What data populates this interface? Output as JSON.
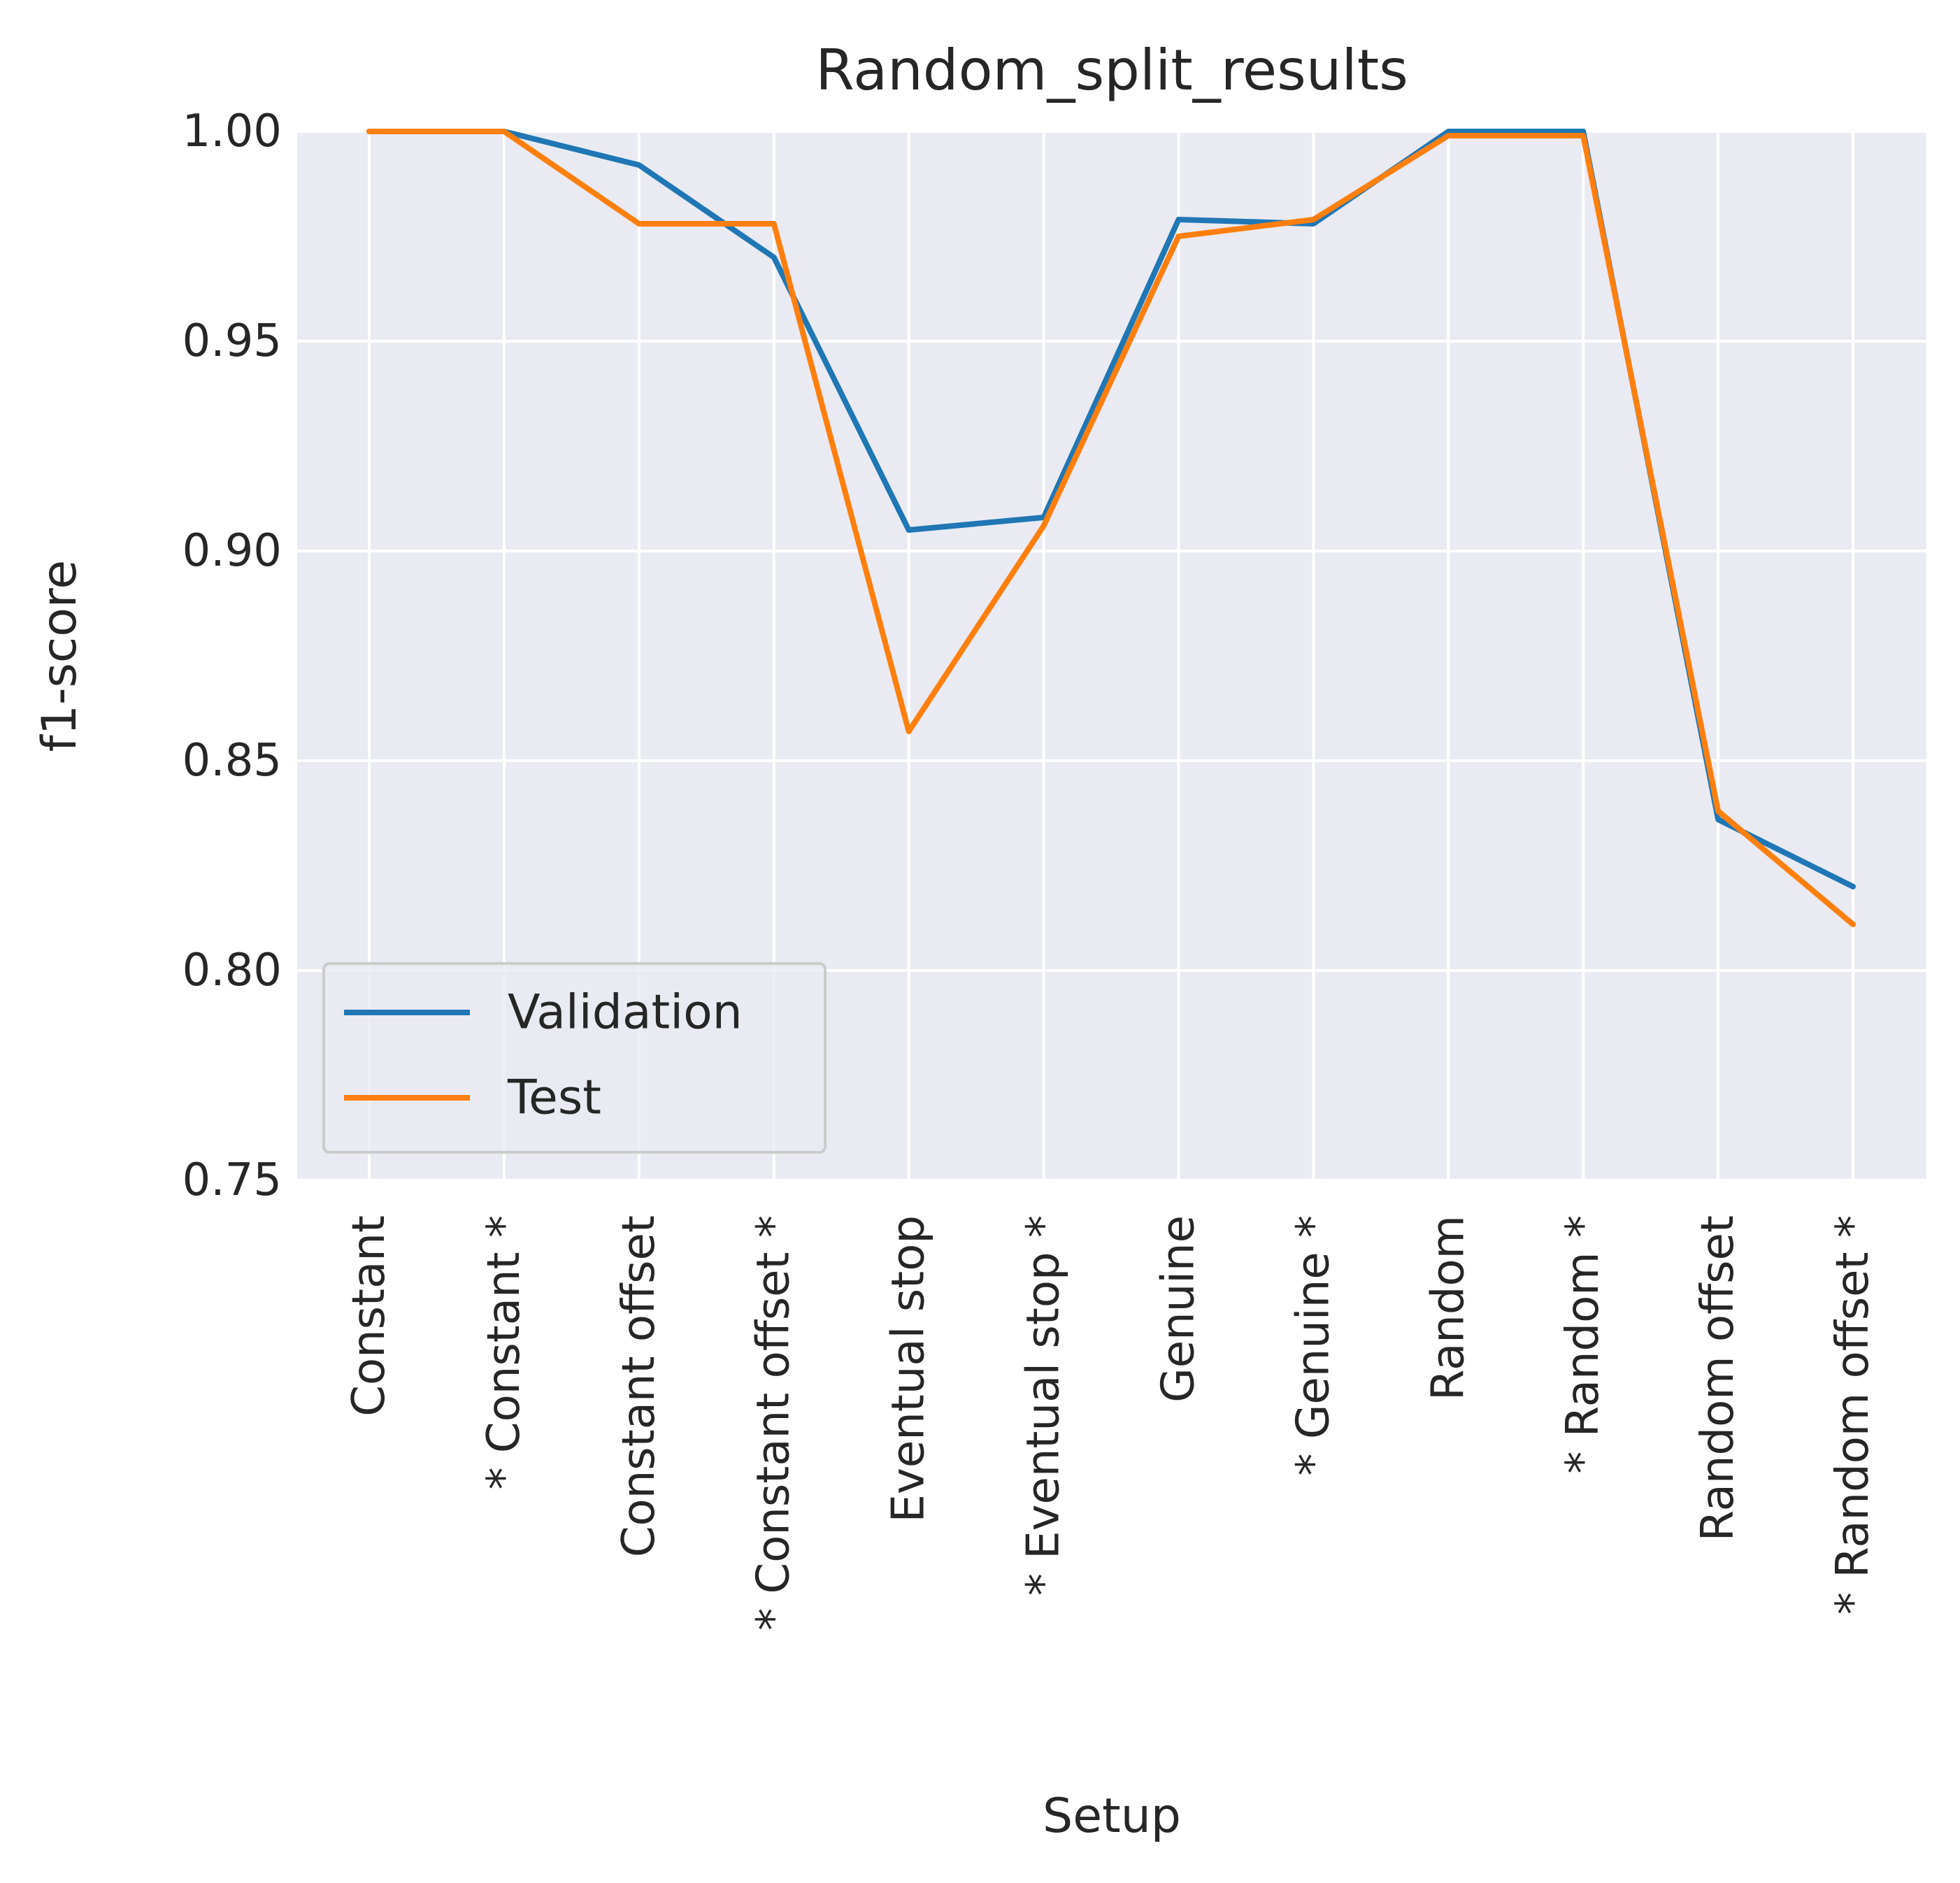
{
  "chart_data": {
    "type": "line",
    "title": "Random_split_results",
    "xlabel": "Setup",
    "ylabel": "f1-score",
    "ylim": [
      0.75,
      1.0
    ],
    "yticks": [
      "0.75",
      "0.80",
      "0.85",
      "0.90",
      "0.95",
      "1.00"
    ],
    "grid": true,
    "legend_position": "lower-left",
    "categories": [
      "Constant",
      "* Constant *",
      "Constant offset",
      "* Constant offset *",
      "Eventual stop",
      "* Eventual stop *",
      "Genuine",
      "* Genuine *",
      "Random",
      "* Random *",
      "Random offset",
      "* Random offset *"
    ],
    "series": [
      {
        "name": "Validation",
        "color": "#1f77b4",
        "values": [
          1.0,
          1.0,
          0.992,
          0.97,
          0.905,
          0.908,
          0.979,
          0.978,
          1.0,
          1.0,
          0.836,
          0.82
        ]
      },
      {
        "name": "Test",
        "color": "#ff7f0e",
        "values": [
          1.0,
          1.0,
          0.978,
          0.978,
          0.857,
          0.906,
          0.975,
          0.979,
          0.999,
          0.999,
          0.838,
          0.811
        ]
      }
    ]
  }
}
